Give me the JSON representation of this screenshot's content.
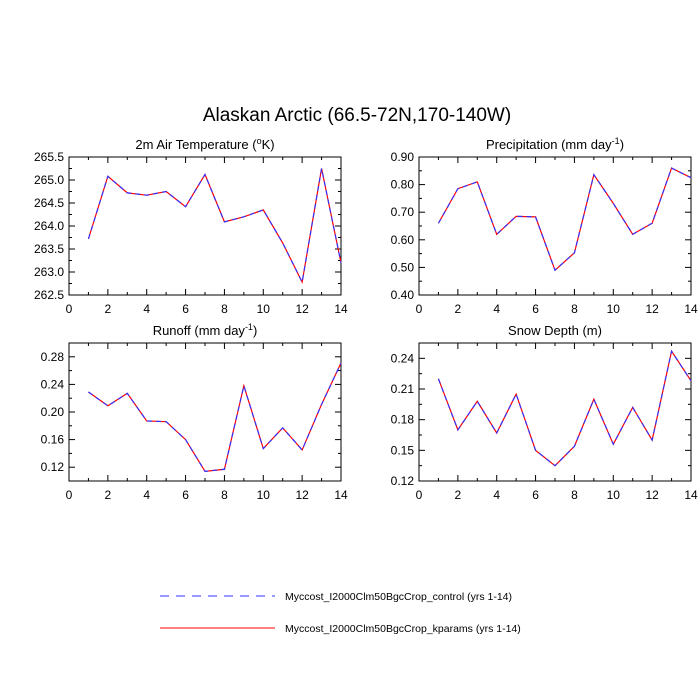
{
  "figure_title": "Alaskan Arctic (66.5-72N,170-140W)",
  "colors": {
    "control": "#3333ff",
    "kparams": "#ff0000",
    "axes": "#000000"
  },
  "legend": {
    "entries": [
      {
        "label": "Myccost_I2000Clm50BgcCrop_control (yrs 1-14)",
        "style": "dashed",
        "color": "#3333ff"
      },
      {
        "label": "Myccost_I2000Clm50BgcCrop_kparams (yrs 1-14)",
        "style": "solid",
        "color": "#ff0000"
      }
    ]
  },
  "chart_data": [
    {
      "type": "line",
      "title": "2m Air Temperature (",
      "title_sup": "o",
      "title_tail": "K)",
      "x": [
        1,
        2,
        3,
        4,
        5,
        6,
        7,
        8,
        9,
        10,
        11,
        12,
        13,
        14
      ],
      "xlim": [
        0,
        14
      ],
      "xticks": [
        "0",
        "2",
        "4",
        "6",
        "8",
        "10",
        "12",
        "14"
      ],
      "ylim": [
        262.5,
        265.5
      ],
      "yticks": [
        "262.5",
        "263.0",
        "263.5",
        "264.0",
        "264.5",
        "265.0",
        "265.5"
      ],
      "series": [
        {
          "name": "Myccost_I2000Clm50BgcCrop_control (yrs 1-14)",
          "values": [
            263.72,
            265.08,
            264.72,
            264.67,
            264.75,
            264.42,
            265.12,
            264.09,
            264.2,
            264.35,
            263.63,
            262.78,
            265.25,
            263.2
          ]
        },
        {
          "name": "Myccost_I2000Clm50BgcCrop_kparams (yrs 1-14)",
          "values": [
            263.72,
            265.08,
            264.72,
            264.67,
            264.75,
            264.42,
            265.12,
            264.09,
            264.2,
            264.35,
            263.63,
            262.78,
            265.25,
            263.2
          ]
        }
      ]
    },
    {
      "type": "line",
      "title": "Precipitation (mm day",
      "title_sup": "-1",
      "title_tail": ")",
      "x": [
        1,
        2,
        3,
        4,
        5,
        6,
        7,
        8,
        9,
        10,
        11,
        12,
        13,
        14
      ],
      "xlim": [
        0,
        14
      ],
      "xticks": [
        "0",
        "2",
        "4",
        "6",
        "8",
        "10",
        "12",
        "14"
      ],
      "ylim": [
        0.4,
        0.9
      ],
      "yticks": [
        "0.40",
        "0.50",
        "0.60",
        "0.70",
        "0.80",
        "0.90"
      ],
      "series": [
        {
          "name": "Myccost_I2000Clm50BgcCrop_control (yrs 1-14)",
          "values": [
            0.66,
            0.785,
            0.81,
            0.62,
            0.685,
            0.683,
            0.49,
            0.553,
            0.836,
            0.732,
            0.62,
            0.66,
            0.86,
            0.825
          ]
        },
        {
          "name": "Myccost_I2000Clm50BgcCrop_kparams (yrs 1-14)",
          "values": [
            0.66,
            0.785,
            0.81,
            0.62,
            0.685,
            0.683,
            0.49,
            0.553,
            0.836,
            0.732,
            0.62,
            0.66,
            0.86,
            0.825
          ]
        }
      ]
    },
    {
      "type": "line",
      "title": "Runoff (mm day",
      "title_sup": "-1",
      "title_tail": ")",
      "x": [
        1,
        2,
        3,
        4,
        5,
        6,
        7,
        8,
        9,
        10,
        11,
        12,
        13,
        14
      ],
      "xlim": [
        0,
        14
      ],
      "xticks": [
        "0",
        "2",
        "4",
        "6",
        "8",
        "10",
        "12",
        "14"
      ],
      "ylim": [
        0.1,
        0.3
      ],
      "yticks": [
        "0.12",
        "0.16",
        "0.20",
        "0.24",
        "0.28"
      ],
      "series": [
        {
          "name": "Myccost_I2000Clm50BgcCrop_control (yrs 1-14)",
          "values": [
            0.229,
            0.209,
            0.227,
            0.187,
            0.186,
            0.16,
            0.114,
            0.117,
            0.238,
            0.147,
            0.177,
            0.145,
            0.211,
            0.271
          ]
        },
        {
          "name": "Myccost_I2000Clm50BgcCrop_kparams (yrs 1-14)",
          "values": [
            0.229,
            0.209,
            0.227,
            0.187,
            0.186,
            0.16,
            0.114,
            0.117,
            0.238,
            0.147,
            0.177,
            0.145,
            0.211,
            0.271
          ]
        }
      ]
    },
    {
      "type": "line",
      "title": "Snow Depth (m)",
      "title_sup": "",
      "title_tail": "",
      "x": [
        1,
        2,
        3,
        4,
        5,
        6,
        7,
        8,
        9,
        10,
        11,
        12,
        13,
        14
      ],
      "xlim": [
        0,
        14
      ],
      "xticks": [
        "0",
        "2",
        "4",
        "6",
        "8",
        "10",
        "12",
        "14"
      ],
      "ylim": [
        0.12,
        0.255
      ],
      "yticks": [
        "0.12",
        "0.15",
        "0.18",
        "0.21",
        "0.24"
      ],
      "series": [
        {
          "name": "Myccost_I2000Clm50BgcCrop_control (yrs 1-14)",
          "values": [
            0.22,
            0.17,
            0.198,
            0.167,
            0.205,
            0.15,
            0.135,
            0.154,
            0.2,
            0.156,
            0.192,
            0.16,
            0.247,
            0.218
          ]
        },
        {
          "name": "Myccost_I2000Clm50BgcCrop_kparams (yrs 1-14)",
          "values": [
            0.22,
            0.17,
            0.198,
            0.167,
            0.205,
            0.15,
            0.135,
            0.154,
            0.2,
            0.156,
            0.192,
            0.16,
            0.247,
            0.218
          ]
        }
      ]
    }
  ]
}
